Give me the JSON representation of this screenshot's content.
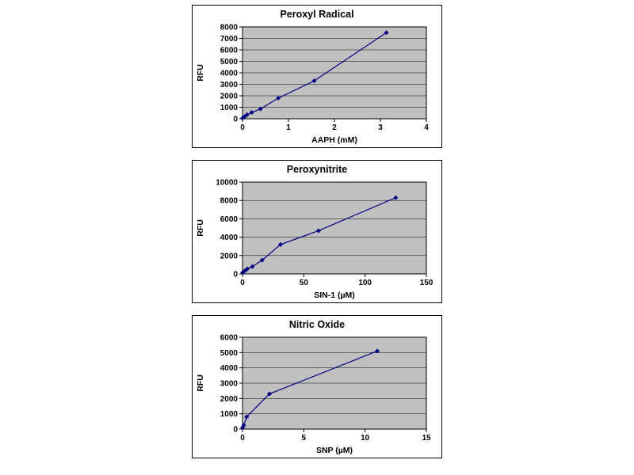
{
  "page": {
    "background": "#ffffff",
    "chart_border_color": "#000000",
    "plot_bg_color": "#c0c0c0",
    "grid_color": "#000000",
    "series_color": "#000080"
  },
  "chart_data": [
    {
      "type": "line",
      "title": "Peroxyl Radical",
      "xlabel": "AAPH (mM)",
      "ylabel": "RFU",
      "xlim": [
        0,
        4
      ],
      "ylim": [
        0,
        8000
      ],
      "xticks": [
        0,
        1,
        2,
        3,
        4
      ],
      "yticks": [
        0,
        1000,
        2000,
        3000,
        4000,
        5000,
        6000,
        7000,
        8000
      ],
      "grid": true,
      "legend": "none",
      "marker": "diamond",
      "line_color": "#000080",
      "x": [
        0,
        0.05,
        0.1,
        0.2,
        0.39,
        0.78,
        1.56,
        3.13
      ],
      "y": [
        50,
        200,
        350,
        550,
        850,
        1800,
        3300,
        7500
      ]
    },
    {
      "type": "line",
      "title": "Peroxynitrite",
      "xlabel": "SIN-1 (µM)",
      "ylabel": "RFU",
      "xlim": [
        0,
        150
      ],
      "ylim": [
        0,
        10000
      ],
      "xticks": [
        0,
        50,
        100,
        150
      ],
      "yticks": [
        0,
        2000,
        4000,
        6000,
        8000,
        10000
      ],
      "grid": true,
      "legend": "none",
      "marker": "diamond",
      "line_color": "#000080",
      "x": [
        0,
        2,
        4,
        8,
        16,
        31,
        62,
        125
      ],
      "y": [
        150,
        350,
        550,
        800,
        1500,
        3200,
        4700,
        8300
      ]
    },
    {
      "type": "line",
      "title": "Nitric Oxide",
      "xlabel": "SNP (µM)",
      "ylabel": "RFU",
      "xlim": [
        0,
        15
      ],
      "ylim": [
        0,
        6000
      ],
      "xticks": [
        0,
        5,
        10,
        15
      ],
      "yticks": [
        0,
        1000,
        2000,
        3000,
        4000,
        5000,
        6000
      ],
      "grid": true,
      "legend": "none",
      "marker": "diamond",
      "line_color": "#000080",
      "x": [
        0,
        0.1,
        0.34,
        2.2,
        11
      ],
      "y": [
        100,
        250,
        800,
        2300,
        5100
      ]
    }
  ]
}
